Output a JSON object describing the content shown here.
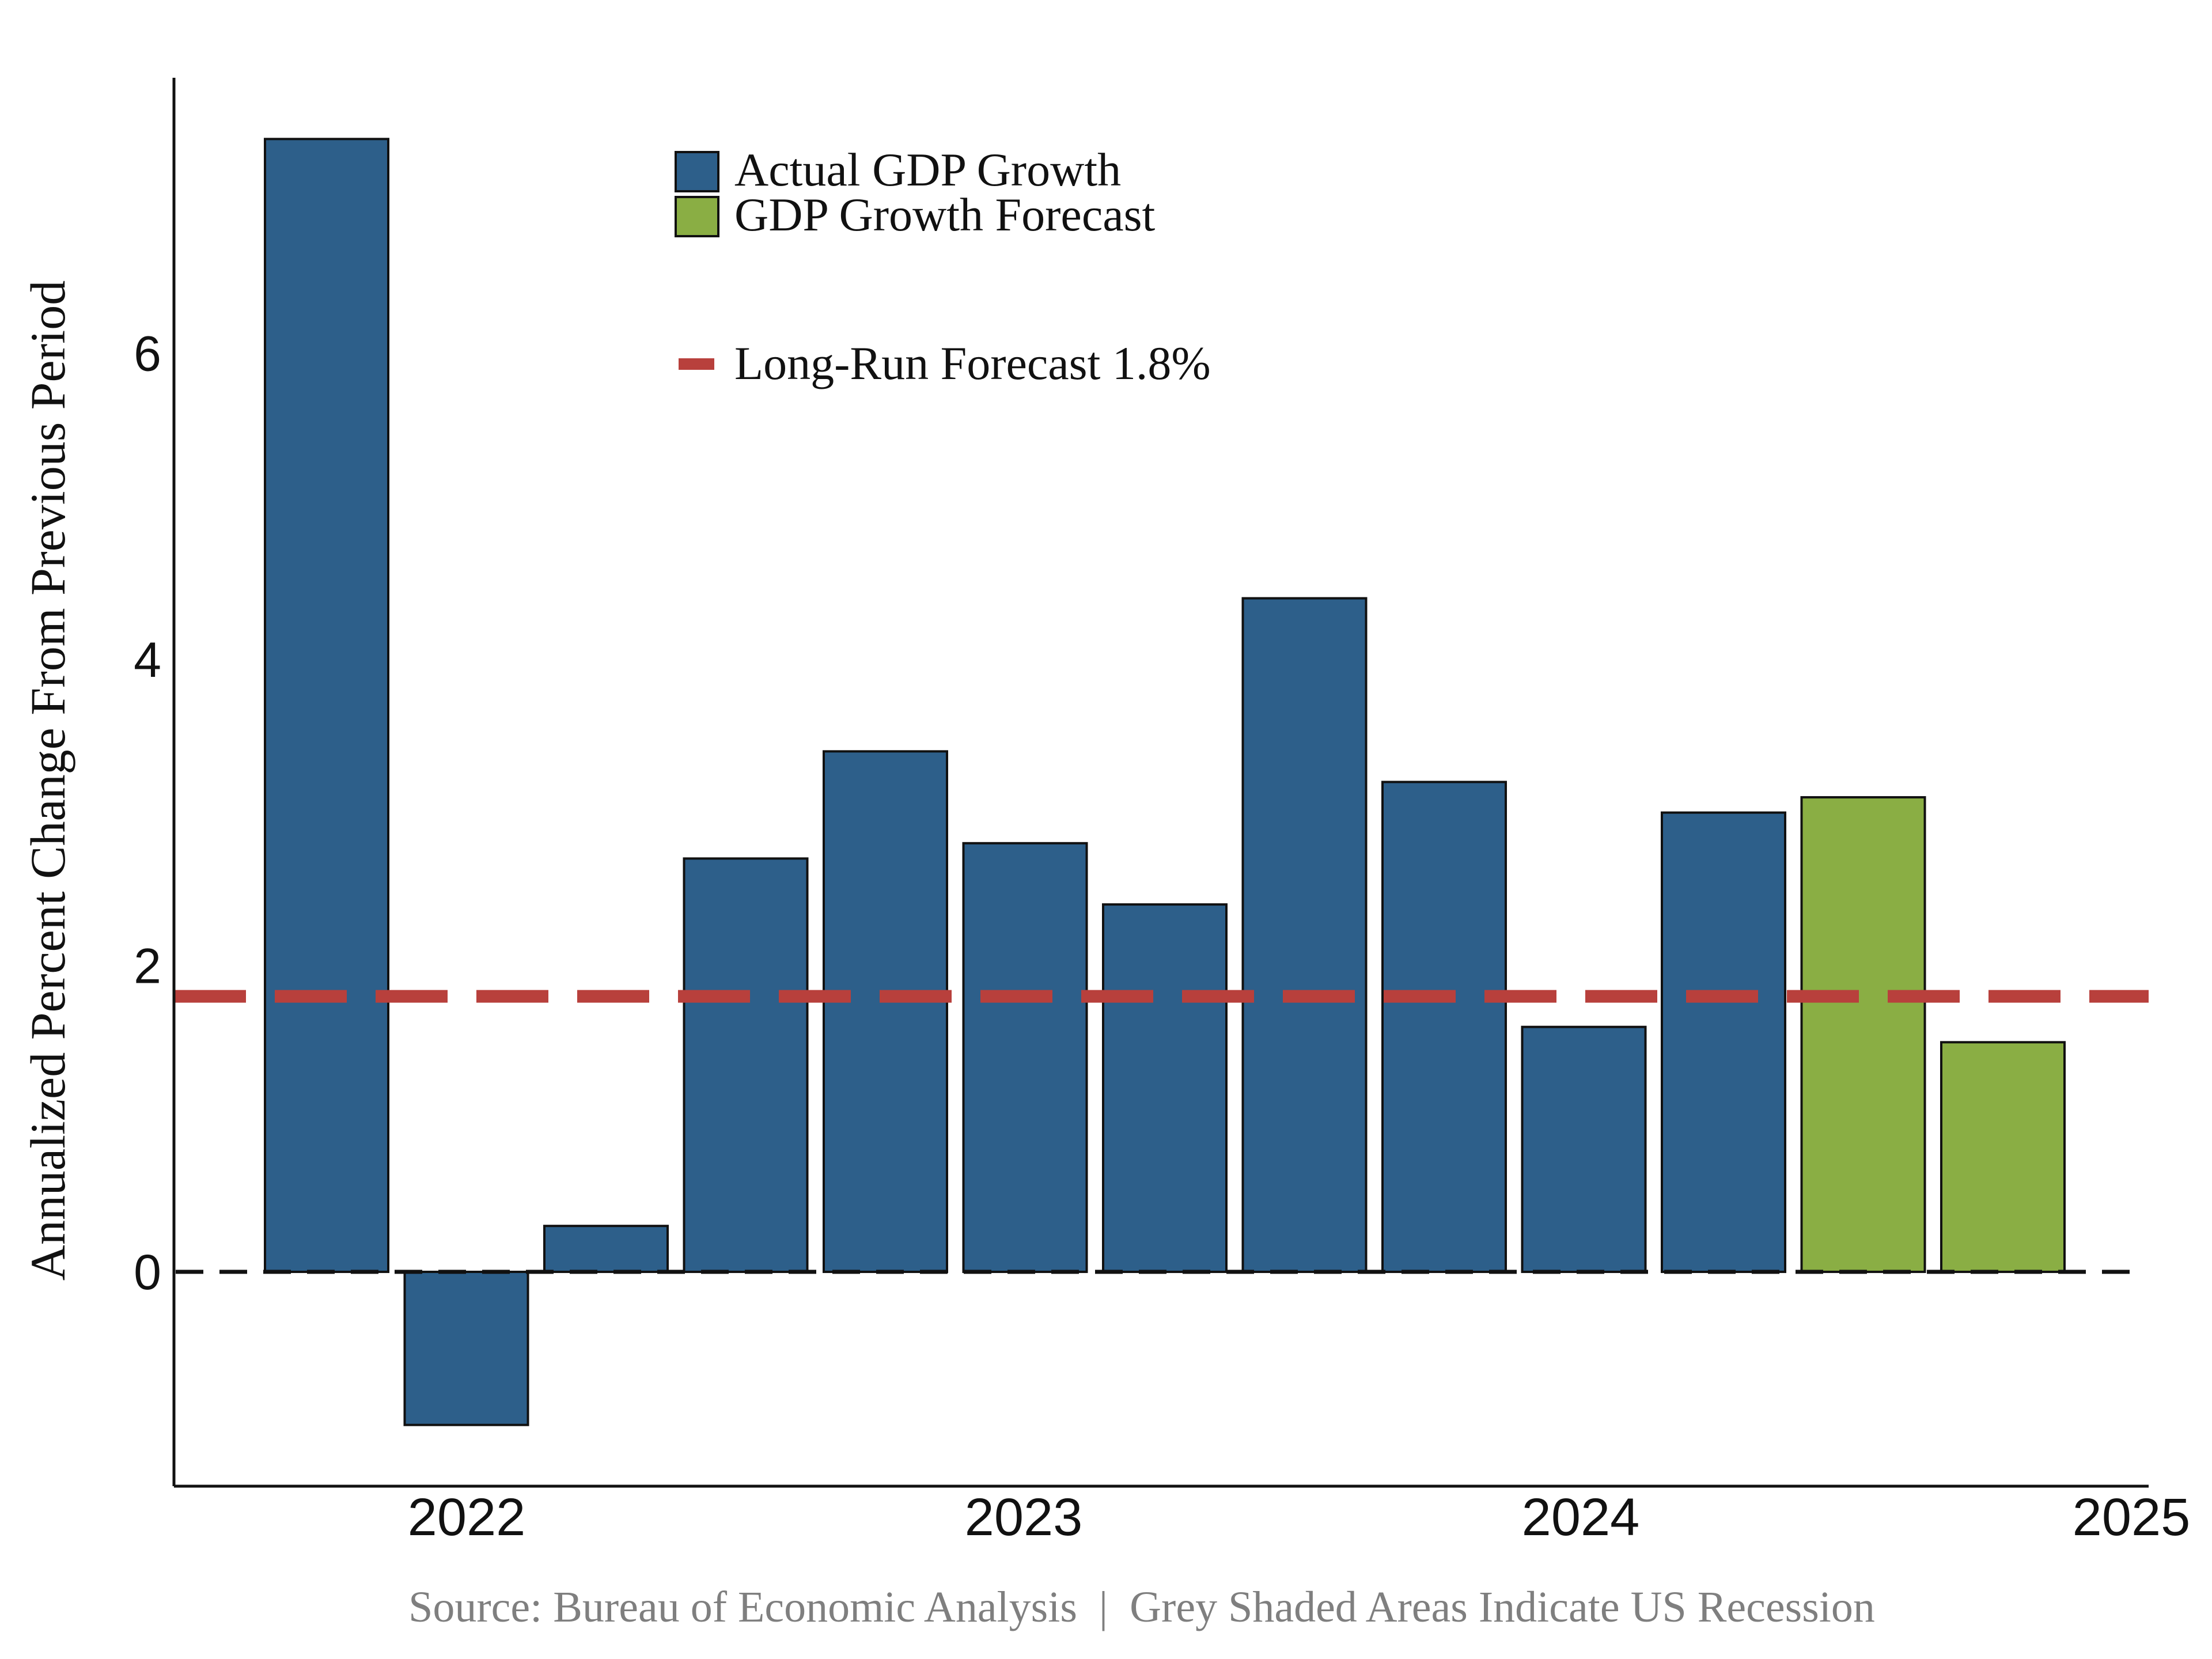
{
  "chart_data": {
    "type": "bar",
    "ylabel": "Annualized Percent Change From Previous Period",
    "x_ticks": [
      "2022",
      "2023",
      "2024",
      "2025"
    ],
    "y_ticks": [
      0,
      2,
      4,
      6
    ],
    "ylim": [
      -1.4,
      7.8
    ],
    "grid": false,
    "legend_position": "top-center",
    "series": [
      {
        "name": "Actual GDP Growth",
        "color": "#2d5f8a",
        "values": [
          7.4,
          -1.0,
          0.3,
          2.7,
          3.4,
          2.8,
          2.4,
          4.4,
          3.2,
          1.6,
          3.0,
          null,
          null
        ]
      },
      {
        "name": "GDP Growth Forecast",
        "color": "#8aae44",
        "values": [
          null,
          null,
          null,
          null,
          null,
          null,
          null,
          null,
          null,
          null,
          null,
          3.1,
          1.5
        ]
      }
    ],
    "reference_lines": [
      {
        "name": "Long-Run Forecast 1.8%",
        "value": 1.8,
        "color": "#b8403c",
        "style": "dashed"
      },
      {
        "name": "",
        "value": 0,
        "color": "#111111",
        "style": "dashed"
      }
    ],
    "source": "Source: Bureau of Economic Analysis  |  Grey Shaded Areas Indicate US Recession"
  }
}
